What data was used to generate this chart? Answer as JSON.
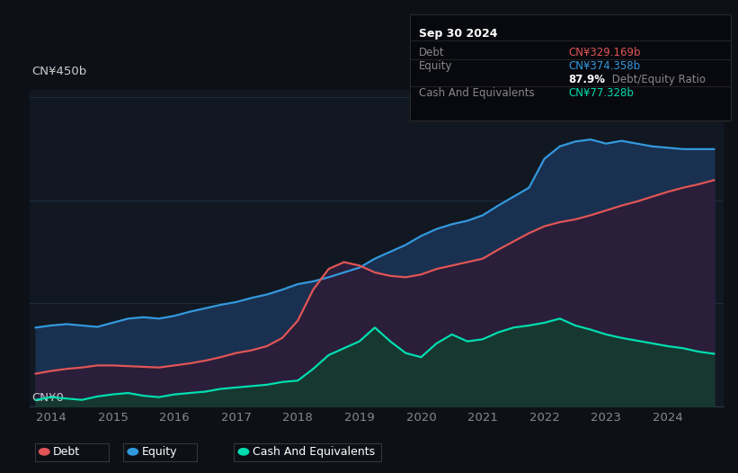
{
  "bg_color": "#0d1117",
  "plot_bg_color": "#111822",
  "grid_color": "#1e2d3d",
  "line_debt_color": "#e05555",
  "line_equity_color": "#3399dd",
  "line_cash_color": "#00ddb0",
  "fill_equity_color": "#1a3050",
  "fill_debt_color": "#2a1e3a",
  "fill_cash_color": "#163830",
  "ylabel_top": "CN¥450b",
  "ylabel_bottom": "CN¥0",
  "xlabel_ticks": [
    "2014",
    "2015",
    "2016",
    "2017",
    "2018",
    "2019",
    "2020",
    "2021",
    "2022",
    "2023",
    "2024"
  ],
  "legend_items": [
    {
      "label": "Debt",
      "color": "#e05555"
    },
    {
      "label": "Equity",
      "color": "#3399dd"
    },
    {
      "label": "Cash And Equivalents",
      "color": "#00ddb0"
    }
  ],
  "tooltip_title": "Sep 30 2024",
  "tooltip_rows": [
    {
      "label": "Debt",
      "value": "CN¥329.169b",
      "value_color": "#e05555"
    },
    {
      "label": "Equity",
      "value": "CN¥374.358b",
      "value_color": "#3399dd"
    },
    {
      "label": "",
      "bold_value": "87.9%",
      "extra": " Debt/Equity Ratio",
      "value_color": "#ffffff"
    },
    {
      "label": "Cash And Equivalents",
      "value": "CN¥77.328b",
      "value_color": "#00ddb0"
    }
  ],
  "years": [
    2013.75,
    2014.0,
    2014.25,
    2014.5,
    2014.75,
    2015.0,
    2015.25,
    2015.5,
    2015.75,
    2016.0,
    2016.25,
    2016.5,
    2016.75,
    2017.0,
    2017.25,
    2017.5,
    2017.75,
    2018.0,
    2018.25,
    2018.5,
    2018.75,
    2019.0,
    2019.25,
    2019.5,
    2019.75,
    2020.0,
    2020.25,
    2020.5,
    2020.75,
    2021.0,
    2021.25,
    2021.5,
    2021.75,
    2022.0,
    2022.25,
    2022.5,
    2022.75,
    2023.0,
    2023.25,
    2023.5,
    2023.75,
    2024.0,
    2024.25,
    2024.5,
    2024.75
  ],
  "debt": [
    48,
    52,
    55,
    57,
    60,
    60,
    59,
    58,
    57,
    60,
    63,
    67,
    72,
    78,
    82,
    88,
    100,
    125,
    170,
    200,
    210,
    205,
    195,
    190,
    188,
    192,
    200,
    205,
    210,
    215,
    228,
    240,
    252,
    262,
    268,
    272,
    278,
    285,
    292,
    298,
    305,
    312,
    318,
    323,
    329
  ],
  "equity": [
    115,
    118,
    120,
    118,
    116,
    122,
    128,
    130,
    128,
    132,
    138,
    143,
    148,
    152,
    158,
    163,
    170,
    178,
    182,
    188,
    195,
    202,
    215,
    225,
    235,
    248,
    258,
    265,
    270,
    278,
    292,
    305,
    318,
    360,
    378,
    385,
    388,
    382,
    386,
    382,
    378,
    376,
    374,
    374,
    374
  ],
  "cash": [
    10,
    14,
    12,
    10,
    15,
    18,
    20,
    16,
    14,
    18,
    20,
    22,
    26,
    28,
    30,
    32,
    36,
    38,
    55,
    75,
    85,
    95,
    115,
    95,
    78,
    72,
    92,
    105,
    95,
    98,
    108,
    115,
    118,
    122,
    128,
    118,
    112,
    105,
    100,
    96,
    92,
    88,
    85,
    80,
    77
  ]
}
